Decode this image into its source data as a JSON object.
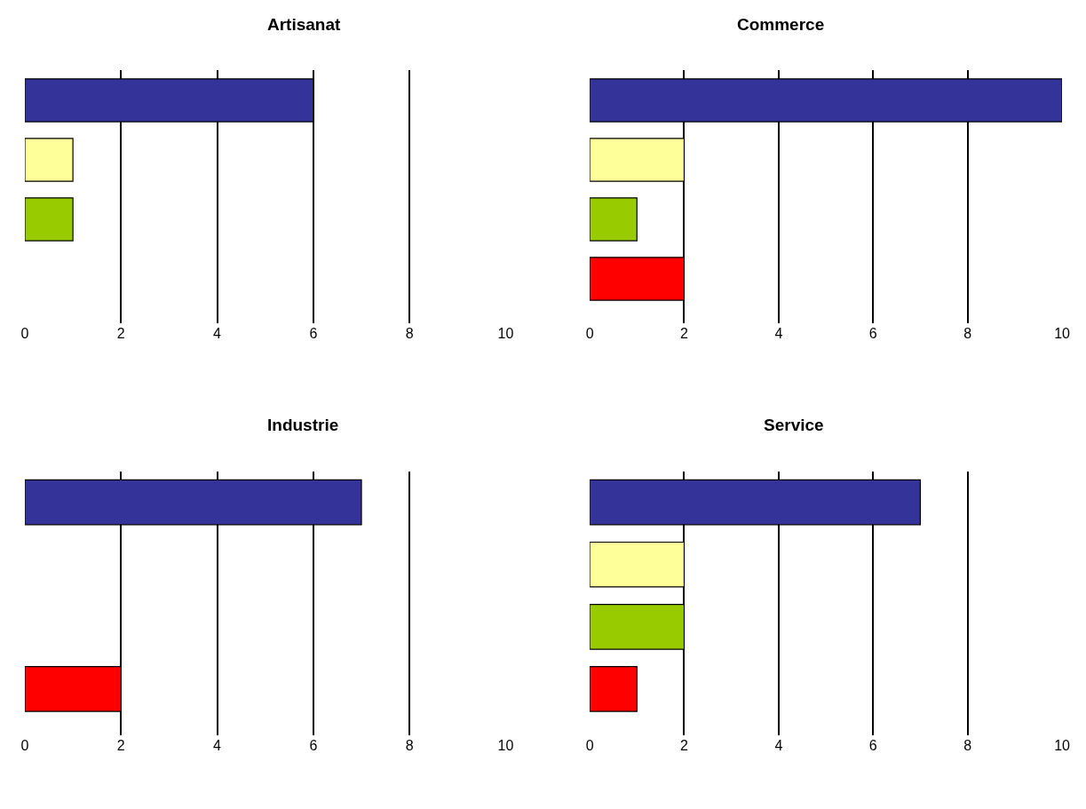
{
  "chart_data": [
    {
      "type": "bar",
      "title": "Artisanat",
      "orientation": "horizontal",
      "categories": [
        null,
        null,
        null,
        null
      ],
      "values": [
        6,
        1,
        1,
        null
      ],
      "colors": [
        "#333399",
        "#ffff99",
        "#99cc00",
        "#ff0000"
      ],
      "xlim": [
        0,
        10
      ],
      "xticks": [
        0,
        2,
        4,
        6,
        8,
        10
      ],
      "grid": "x",
      "tick_labels": "x"
    },
    {
      "type": "bar",
      "title": "Commerce",
      "orientation": "horizontal",
      "categories": [
        null,
        null,
        null,
        null
      ],
      "values": [
        10,
        2,
        1,
        2
      ],
      "colors": [
        "#333399",
        "#ffff99",
        "#99cc00",
        "#ff0000"
      ],
      "xlim": [
        0,
        10
      ],
      "xticks": [
        0,
        2,
        4,
        6,
        8,
        10
      ],
      "grid": "x",
      "tick_labels": "x"
    },
    {
      "type": "bar",
      "title": "Industrie",
      "orientation": "horizontal",
      "categories": [
        null,
        null,
        null,
        null
      ],
      "values": [
        7,
        null,
        null,
        2
      ],
      "colors": [
        "#333399",
        "#ffff99",
        "#99cc00",
        "#ff0000"
      ],
      "xlim": [
        0,
        10
      ],
      "xticks": [
        0,
        2,
        4,
        6,
        8,
        10
      ],
      "grid": "x",
      "tick_labels": "x"
    },
    {
      "type": "bar",
      "title": "Service",
      "orientation": "horizontal",
      "categories": [
        null,
        null,
        null,
        null
      ],
      "values": [
        7,
        2,
        2,
        1
      ],
      "colors": [
        "#333399",
        "#ffff99",
        "#99cc00",
        "#ff0000"
      ],
      "xlim": [
        0,
        10
      ],
      "xticks": [
        0,
        2,
        4,
        6,
        8,
        10
      ],
      "grid": "x",
      "tick_labels": "x"
    }
  ]
}
